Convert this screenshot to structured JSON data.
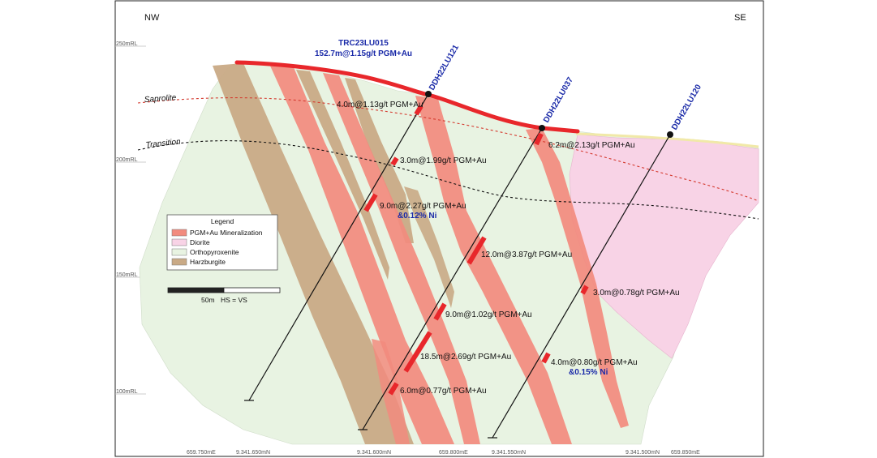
{
  "directions": {
    "left": "NW",
    "right": "SE"
  },
  "rl_labels": [
    "250mRL",
    "200mRL",
    "150mRL",
    "100mRL"
  ],
  "bottom_labels": [
    "659.750mE",
    "9.341.650mN",
    "9.341.600mN",
    "659.800mE",
    "9.341.550mN",
    "9.341.500mN",
    "659.850mE"
  ],
  "trench": {
    "name": "TRC23LU015",
    "result": "152.7m@1.15g/t PGM+Au"
  },
  "layers": {
    "saprolite": "Saprolite",
    "transition": "Transition"
  },
  "holes": [
    {
      "name": "DDH22LU121"
    },
    {
      "name": "DDH22LU037"
    },
    {
      "name": "DDH22LU120"
    }
  ],
  "intercepts": [
    {
      "text": "4.0m@1.13g/t PGM+Au"
    },
    {
      "text": "3.0m@1.99g/t PGM+Au"
    },
    {
      "text": "9.0m@2.27g/t PGM+Au",
      "sub": "&0.12% Ni"
    },
    {
      "text": "6.2m@2.13g/t PGM+Au"
    },
    {
      "text": "12.0m@3.87g/t PGM+Au"
    },
    {
      "text": "3.0m@0.78g/t PGM+Au"
    },
    {
      "text": "9.0m@1.02g/t PGM+Au"
    },
    {
      "text": "18.5m@2.69g/t PGM+Au"
    },
    {
      "text": "4.0m@0.80g/t PGM+Au",
      "sub": "&0.15% Ni"
    },
    {
      "text": "6.0m@0.77g/t PGM+Au"
    }
  ],
  "legend": {
    "title": "Legend",
    "items": [
      {
        "label": "PGM+Au Mineralization",
        "color": "#f28b7e"
      },
      {
        "label": "Diorite",
        "color": "#f8d3e6"
      },
      {
        "label": "Orthopyroxenite",
        "color": "#e8f3e2"
      },
      {
        "label": "Harzburgite",
        "color": "#c9aa86"
      }
    ]
  },
  "scale": {
    "label": "50m",
    "note": "HS = VS"
  },
  "colors": {
    "mineralization": "#f28b7e",
    "high_grade": "#e8272b",
    "diorite": "#f8d3e6",
    "orthopyroxenite": "#e8f3e2",
    "harzburgite": "#c9aa86",
    "hole_label": "#1a2aa8"
  }
}
